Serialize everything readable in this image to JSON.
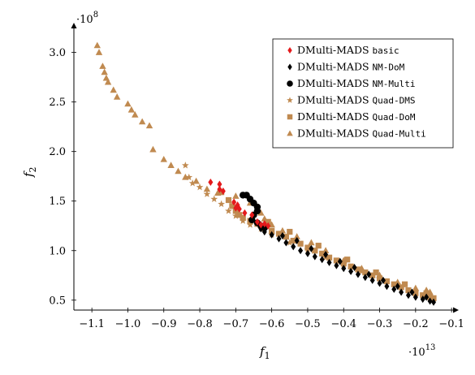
{
  "chart_data": {
    "type": "scatter",
    "title": "",
    "xlabel": "f",
    "xlabel_sub": "1",
    "ylabel": "f",
    "ylabel_sub": "2",
    "x_exponent_prefix": "·10",
    "x_exponent": "13",
    "y_exponent_prefix": "·10",
    "y_exponent": "8",
    "xlim": [
      -1.15,
      -0.08
    ],
    "ylim": [
      0.4,
      3.3
    ],
    "x_ticks": [
      -1.1,
      -1.0,
      -0.9,
      -0.8,
      -0.7,
      -0.6,
      -0.5,
      -0.4,
      -0.3,
      -0.2,
      -0.1
    ],
    "x_tick_labels": [
      "−1.1",
      "−1.0",
      "−0.9",
      "−0.8",
      "−0.7",
      "−0.6",
      "−0.5",
      "−0.4",
      "−0.3",
      "−0.2",
      "−0.1"
    ],
    "y_ticks": [
      0.5,
      1.0,
      1.5,
      2.0,
      2.5,
      3.0
    ],
    "y_tick_labels": [
      "0.5",
      "1.0",
      "1.5",
      "2.0",
      "2.5",
      "3.0"
    ],
    "grid": false,
    "legend_position": "top-right",
    "series": [
      {
        "name": "DMulti-MADS ",
        "name_mono": "basic",
        "marker": "diamond",
        "color": "#e41a1c",
        "points": [
          [
            -0.77,
            1.69
          ],
          [
            -0.745,
            1.67
          ],
          [
            -0.735,
            1.6
          ],
          [
            -0.705,
            1.49
          ],
          [
            -0.695,
            1.46
          ],
          [
            -0.69,
            1.42
          ],
          [
            -0.675,
            1.38
          ],
          [
            -0.655,
            1.36
          ],
          [
            -0.64,
            1.29
          ],
          [
            -0.63,
            1.26
          ],
          [
            -0.62,
            1.27
          ],
          [
            -0.61,
            1.25
          ],
          [
            -0.745,
            1.62
          ],
          [
            -0.7,
            1.43
          ]
        ]
      },
      {
        "name": "DMulti-MADS ",
        "name_mono": "NM-DoM",
        "marker": "diamond",
        "color": "#000000",
        "points": [
          [
            -0.63,
            1.22
          ],
          [
            -0.62,
            1.19
          ],
          [
            -0.6,
            1.16
          ],
          [
            -0.58,
            1.12
          ],
          [
            -0.56,
            1.08
          ],
          [
            -0.54,
            1.04
          ],
          [
            -0.52,
            1.0
          ],
          [
            -0.5,
            0.97
          ],
          [
            -0.48,
            0.94
          ],
          [
            -0.46,
            0.91
          ],
          [
            -0.44,
            0.88
          ],
          [
            -0.42,
            0.85
          ],
          [
            -0.4,
            0.82
          ],
          [
            -0.38,
            0.79
          ],
          [
            -0.36,
            0.76
          ],
          [
            -0.34,
            0.73
          ],
          [
            -0.32,
            0.7
          ],
          [
            -0.3,
            0.67
          ],
          [
            -0.28,
            0.64
          ],
          [
            -0.26,
            0.61
          ],
          [
            -0.24,
            0.58
          ],
          [
            -0.22,
            0.55
          ],
          [
            -0.2,
            0.53
          ],
          [
            -0.18,
            0.51
          ],
          [
            -0.16,
            0.49
          ],
          [
            -0.15,
            0.48
          ],
          [
            -0.57,
            1.15
          ],
          [
            -0.53,
            1.1
          ],
          [
            -0.49,
            1.02
          ],
          [
            -0.45,
            0.96
          ],
          [
            -0.41,
            0.89
          ],
          [
            -0.37,
            0.83
          ],
          [
            -0.33,
            0.76
          ],
          [
            -0.29,
            0.7
          ],
          [
            -0.25,
            0.64
          ],
          [
            -0.21,
            0.58
          ],
          [
            -0.17,
            0.53
          ]
        ]
      },
      {
        "name": "DMulti-MADS ",
        "name_mono": "NM-Multi",
        "marker": "circle",
        "color": "#000000",
        "points": [
          [
            -0.68,
            1.56
          ],
          [
            -0.67,
            1.56
          ],
          [
            -0.66,
            1.52
          ],
          [
            -0.65,
            1.48
          ],
          [
            -0.64,
            1.44
          ],
          [
            -0.64,
            1.4
          ],
          [
            -0.65,
            1.36
          ],
          [
            -0.655,
            1.31
          ],
          [
            -0.64,
            1.28
          ],
          [
            -0.63,
            1.25
          ],
          [
            -0.62,
            1.23
          ]
        ]
      },
      {
        "name": "DMulti-MADS ",
        "name_mono": "Quad-DMS",
        "marker": "star",
        "color": "#c08a50",
        "points": [
          [
            -0.84,
            1.86
          ],
          [
            -0.83,
            1.74
          ],
          [
            -0.82,
            1.68
          ],
          [
            -0.8,
            1.64
          ],
          [
            -0.78,
            1.57
          ],
          [
            -0.76,
            1.52
          ],
          [
            -0.74,
            1.47
          ],
          [
            -0.72,
            1.4
          ],
          [
            -0.7,
            1.35
          ],
          [
            -0.68,
            1.3
          ],
          [
            -0.66,
            1.26
          ],
          [
            -0.63,
            1.22
          ],
          [
            -0.6,
            1.16
          ],
          [
            -0.55,
            1.08
          ],
          [
            -0.5,
            1.01
          ],
          [
            -0.45,
            0.93
          ],
          [
            -0.4,
            0.86
          ],
          [
            -0.35,
            0.79
          ],
          [
            -0.3,
            0.72
          ],
          [
            -0.25,
            0.66
          ],
          [
            -0.2,
            0.59
          ],
          [
            -0.16,
            0.53
          ]
        ]
      },
      {
        "name": "DMulti-MADS ",
        "name_mono": "Quad-DoM",
        "marker": "square",
        "color": "#c08a50",
        "points": [
          [
            -0.74,
            1.59
          ],
          [
            -0.72,
            1.51
          ],
          [
            -0.71,
            1.45
          ],
          [
            -0.7,
            1.4
          ],
          [
            -0.69,
            1.36
          ],
          [
            -0.68,
            1.33
          ],
          [
            -0.66,
            1.3
          ],
          [
            -0.64,
            1.27
          ],
          [
            -0.62,
            1.24
          ],
          [
            -0.6,
            1.2
          ],
          [
            -0.58,
            1.17
          ],
          [
            -0.56,
            1.14
          ],
          [
            -0.54,
            1.1
          ],
          [
            -0.52,
            1.07
          ],
          [
            -0.5,
            1.03
          ],
          [
            -0.48,
            1.0
          ],
          [
            -0.46,
            0.97
          ],
          [
            -0.44,
            0.93
          ],
          [
            -0.42,
            0.9
          ],
          [
            -0.4,
            0.87
          ],
          [
            -0.38,
            0.84
          ],
          [
            -0.36,
            0.81
          ],
          [
            -0.34,
            0.78
          ],
          [
            -0.32,
            0.75
          ],
          [
            -0.3,
            0.72
          ],
          [
            -0.28,
            0.69
          ],
          [
            -0.26,
            0.66
          ],
          [
            -0.24,
            0.63
          ],
          [
            -0.22,
            0.6
          ],
          [
            -0.2,
            0.57
          ],
          [
            -0.18,
            0.55
          ],
          [
            -0.16,
            0.53
          ],
          [
            -0.15,
            0.52
          ],
          [
            -0.61,
            1.29
          ],
          [
            -0.55,
            1.19
          ],
          [
            -0.47,
            1.05
          ],
          [
            -0.39,
            0.91
          ],
          [
            -0.31,
            0.78
          ],
          [
            -0.23,
            0.66
          ],
          [
            -0.17,
            0.57
          ]
        ]
      },
      {
        "name": "DMulti-MADS ",
        "name_mono": "Quad-Multi",
        "marker": "triangle",
        "color": "#c08a50",
        "points": [
          [
            -1.085,
            3.07
          ],
          [
            -1.08,
            3.0
          ],
          [
            -1.07,
            2.86
          ],
          [
            -1.065,
            2.8
          ],
          [
            -1.06,
            2.74
          ],
          [
            -1.055,
            2.7
          ],
          [
            -1.04,
            2.62
          ],
          [
            -1.03,
            2.55
          ],
          [
            -1.0,
            2.48
          ],
          [
            -0.99,
            2.42
          ],
          [
            -0.98,
            2.37
          ],
          [
            -0.96,
            2.3
          ],
          [
            -0.94,
            2.26
          ],
          [
            -0.93,
            2.02
          ],
          [
            -0.9,
            1.92
          ],
          [
            -0.88,
            1.86
          ],
          [
            -0.86,
            1.8
          ],
          [
            -0.84,
            1.74
          ],
          [
            -0.81,
            1.7
          ],
          [
            -0.78,
            1.62
          ],
          [
            -0.75,
            1.58
          ],
          [
            -0.7,
            1.55
          ],
          [
            -0.66,
            1.48
          ],
          [
            -0.63,
            1.38
          ],
          [
            -0.62,
            1.32
          ],
          [
            -0.6,
            1.26
          ],
          [
            -0.57,
            1.2
          ],
          [
            -0.53,
            1.14
          ],
          [
            -0.49,
            1.08
          ],
          [
            -0.45,
            1.0
          ],
          [
            -0.4,
            0.9
          ],
          [
            -0.35,
            0.82
          ],
          [
            -0.3,
            0.75
          ],
          [
            -0.25,
            0.68
          ],
          [
            -0.2,
            0.62
          ],
          [
            -0.17,
            0.6
          ],
          [
            -0.16,
            0.58
          ]
        ]
      }
    ]
  }
}
